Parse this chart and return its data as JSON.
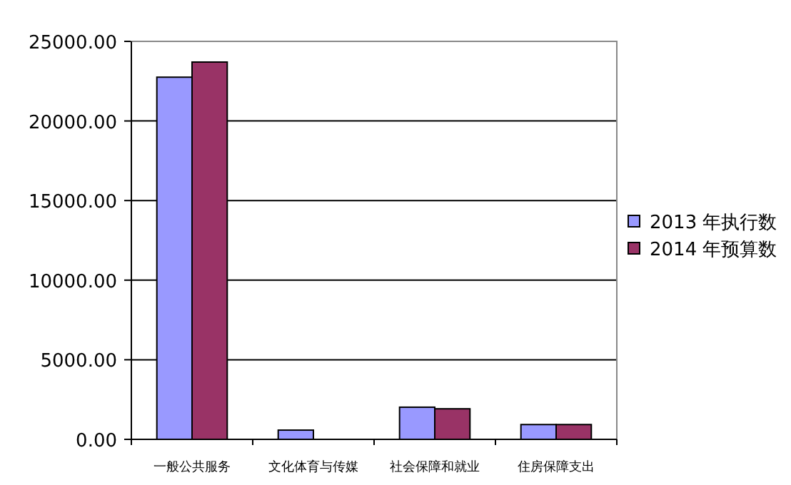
{
  "chart_data": {
    "type": "bar",
    "categories": [
      "一般公共服务",
      "文化体育与传媒",
      "社会保障和就业",
      "住房保障支出"
    ],
    "series": [
      {
        "name": "2013 年执行数",
        "color": "#9999ff",
        "values": [
          22750,
          580,
          2020,
          930
        ]
      },
      {
        "name": "2014 年预算数",
        "color": "#993366",
        "values": [
          23700,
          null,
          1920,
          930
        ]
      }
    ],
    "ylim": [
      0,
      25000
    ],
    "yticks": [
      {
        "value": 0,
        "label": "0.00"
      },
      {
        "value": 5000,
        "label": "5000.00"
      },
      {
        "value": 10000,
        "label": "10000.00"
      },
      {
        "value": 15000,
        "label": "15000.00"
      },
      {
        "value": 20000,
        "label": "20000.00"
      },
      {
        "value": 25000,
        "label": "25000.00"
      }
    ],
    "grid": "y",
    "legend": "right"
  }
}
